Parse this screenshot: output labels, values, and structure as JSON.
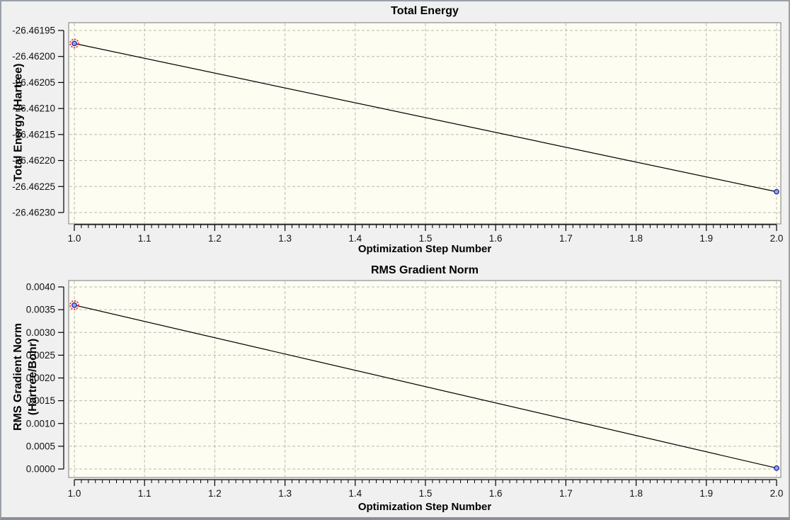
{
  "panel": {
    "background": "#f0f0f0",
    "border_color": "#9aa0a7"
  },
  "chart_data": [
    {
      "type": "line",
      "title": "Total Energy",
      "xlabel": "Optimization Step Number",
      "ylabel": "Total Energy (Hartree)",
      "ylabel_lines": [
        "Total Energy (Hartree)"
      ],
      "x": [
        1.0,
        2.0
      ],
      "y": [
        -26.461975,
        -26.46226
      ],
      "xlim": [
        1.0,
        2.0
      ],
      "ylim": [
        -26.4623,
        -26.46195
      ],
      "x_ticks": {
        "values": [
          1.0,
          1.1,
          1.2,
          1.3,
          1.4,
          1.5,
          1.6,
          1.7,
          1.8,
          1.9,
          2.0
        ],
        "labels": [
          "1.0",
          "1.1",
          "1.2",
          "1.3",
          "1.4",
          "1.5",
          "1.6",
          "1.7",
          "1.8",
          "1.9",
          "2.0"
        ]
      },
      "y_ticks": {
        "values": [
          -26.46195,
          -26.462,
          -26.46205,
          -26.4621,
          -26.46215,
          -26.4622,
          -26.46225,
          -26.4623
        ],
        "labels": [
          "-26.46195",
          "-26.46200",
          "-26.46205",
          "-26.46210",
          "-26.46215",
          "-26.46220",
          "-26.46225",
          "-26.46230"
        ]
      },
      "x_minor_step": 0.01,
      "grid": true,
      "legend": false,
      "plot_bg": "#fdfdf1",
      "plot_border": "#7a7a7a",
      "grid_color": "#b9b9b2",
      "line_color": "#000000",
      "marker_fill": "#9aa4e2",
      "marker_stroke": "#2232b4",
      "highlight_first_point_color": "#e03232"
    },
    {
      "type": "line",
      "title": "RMS Gradient Norm",
      "xlabel": "Optimization Step Number",
      "ylabel": "RMS Gradient Norm (Hartree/Bohr)",
      "ylabel_lines": [
        "RMS Gradient Norm",
        "(Hartree/Bohr)"
      ],
      "x": [
        1.0,
        2.0
      ],
      "y": [
        0.0036,
        2e-05
      ],
      "xlim": [
        1.0,
        2.0
      ],
      "ylim": [
        0.0,
        0.004
      ],
      "x_ticks": {
        "values": [
          1.0,
          1.1,
          1.2,
          1.3,
          1.4,
          1.5,
          1.6,
          1.7,
          1.8,
          1.9,
          2.0
        ],
        "labels": [
          "1.0",
          "1.1",
          "1.2",
          "1.3",
          "1.4",
          "1.5",
          "1.6",
          "1.7",
          "1.8",
          "1.9",
          "2.0"
        ]
      },
      "y_ticks": {
        "values": [
          0.004,
          0.0035,
          0.003,
          0.0025,
          0.002,
          0.0015,
          0.001,
          0.0005,
          0.0
        ],
        "labels": [
          "0.0040",
          "0.0035",
          "0.0030",
          "0.0025",
          "0.0020",
          "0.0015",
          "0.0010",
          "0.0005",
          "0.0000"
        ]
      },
      "x_minor_step": 0.01,
      "grid": true,
      "legend": false,
      "plot_bg": "#fdfdf1",
      "plot_border": "#7a7a7a",
      "grid_color": "#b9b9b2",
      "line_color": "#000000",
      "marker_fill": "#9aa4e2",
      "marker_stroke": "#2232b4",
      "highlight_first_point_color": "#e03232"
    }
  ]
}
